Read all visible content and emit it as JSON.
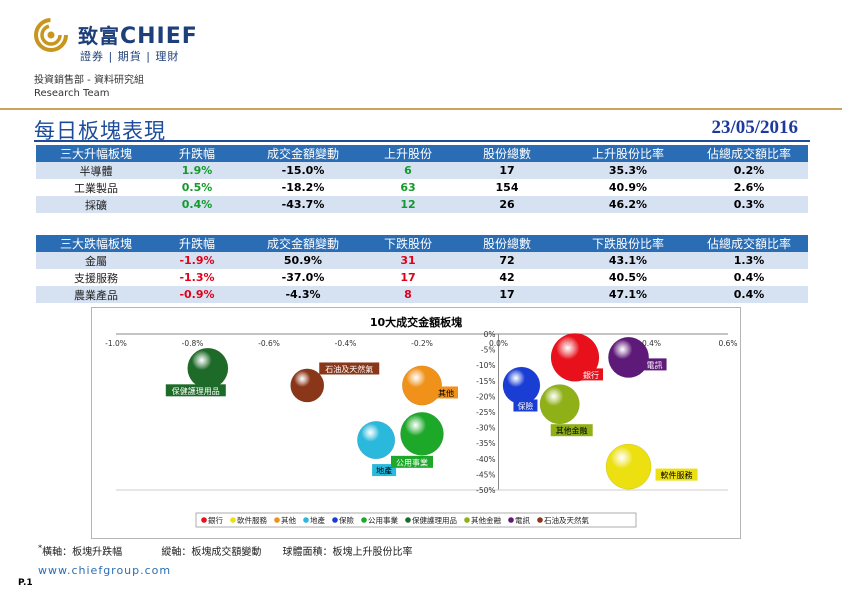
{
  "brand": {
    "name_cn": "致富",
    "name_en": "CHIEF",
    "tagline": "證券 | 期貨 | 理財"
  },
  "header": {
    "department": "投資銷售部 - 資料研究組",
    "team": "Research Team"
  },
  "page": {
    "title": "每日板塊表現",
    "date": "23/05/2016",
    "website": "www.chiefgroup.com",
    "page_number": "P.1"
  },
  "gainers": {
    "headers": [
      "三大升幅板塊",
      "升跌幅",
      "成交金額變動",
      "上升股份",
      "股份總數",
      "上升股份比率",
      "佔總成交額比率"
    ],
    "rows": [
      [
        "半導體",
        "1.9%",
        "-15.0%",
        "6",
        "17",
        "35.3%",
        "0.2%"
      ],
      [
        "工業製品",
        "0.5%",
        "-18.2%",
        "63",
        "154",
        "40.9%",
        "2.6%"
      ],
      [
        "採礦",
        "0.4%",
        "-43.7%",
        "12",
        "26",
        "46.2%",
        "0.3%"
      ]
    ]
  },
  "losers": {
    "headers": [
      "三大跌幅板塊",
      "升跌幅",
      "成交金額變動",
      "下跌股份",
      "股份總數",
      "下跌股份比率",
      "佔總成交額比率"
    ],
    "rows": [
      [
        "金屬",
        "-1.9%",
        "50.9%",
        "31",
        "72",
        "43.1%",
        "1.3%"
      ],
      [
        "支援服務",
        "-1.3%",
        "-37.0%",
        "17",
        "42",
        "40.5%",
        "0.4%"
      ],
      [
        "農業產品",
        "-0.9%",
        "-4.3%",
        "8",
        "17",
        "47.1%",
        "0.4%"
      ]
    ]
  },
  "colors": {
    "green": "#129a2a",
    "red": "#e0001a",
    "header_blue": "#2a6db5"
  },
  "chart_data": {
    "type": "scatter",
    "title": "10大成交金額板塊",
    "xlabel": "板塊升跌幅",
    "ylabel": "板塊成交額變動",
    "x_ticks": [
      "-1.0%",
      "-0.8%",
      "-0.6%",
      "-0.4%",
      "-0.2%",
      "0.0%",
      "0.2%",
      "0.4%",
      "0.6%"
    ],
    "y_ticks": [
      "0%",
      "-5%",
      "-10%",
      "-15%",
      "-20%",
      "-25%",
      "-30%",
      "-35%",
      "-40%",
      "-45%",
      "-50%"
    ],
    "xlim": [
      -1.0,
      0.6
    ],
    "ylim": [
      -50,
      0
    ],
    "series": [
      {
        "name": "銀行",
        "x": 0.2,
        "y": -7.5,
        "ratio": 0.62,
        "color": "#e8101a"
      },
      {
        "name": "軟件服務",
        "x": 0.34,
        "y": -42.5,
        "ratio": 0.55,
        "color": "#ece010"
      },
      {
        "name": "其他",
        "x": -0.2,
        "y": -16.5,
        "ratio": 0.42,
        "color": "#f0921a"
      },
      {
        "name": "地產",
        "x": -0.32,
        "y": -34,
        "ratio": 0.38,
        "color": "#2ab8dc"
      },
      {
        "name": "保險",
        "x": 0.06,
        "y": -16.5,
        "ratio": 0.37,
        "color": "#1a3ed4"
      },
      {
        "name": "公用事業",
        "x": -0.2,
        "y": -32,
        "ratio": 0.5,
        "color": "#1ea82a"
      },
      {
        "name": "保健護理用品",
        "x": -0.76,
        "y": -11,
        "ratio": 0.44,
        "color": "#1e6a28"
      },
      {
        "name": "其他金融",
        "x": 0.16,
        "y": -22.5,
        "ratio": 0.42,
        "color": "#90b018"
      },
      {
        "name": "電訊",
        "x": 0.34,
        "y": -7.5,
        "ratio": 0.44,
        "color": "#5e1a78"
      },
      {
        "name": "石油及天然氣",
        "x": -0.5,
        "y": -16.5,
        "ratio": 0.3,
        "color": "#8a3618"
      }
    ]
  },
  "footnote": {
    "star": "*",
    "x_axis": "橫軸：板塊升跌幅",
    "y_axis": "縱軸：板塊成交額變動",
    "bubble": "球體面積：板塊上升股份比率"
  }
}
